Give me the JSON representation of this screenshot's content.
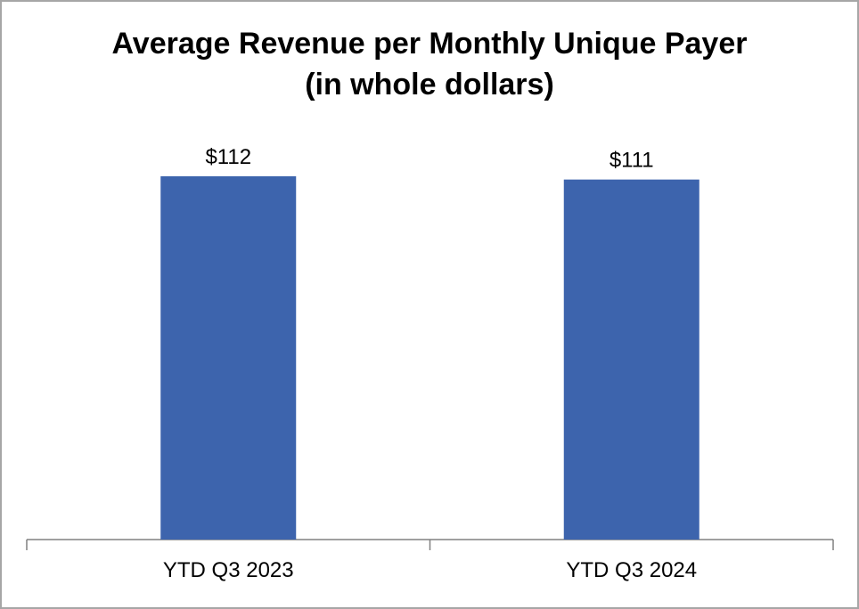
{
  "chart_data": {
    "type": "bar",
    "title": "Average Revenue per Monthly Unique Payer",
    "subtitle": "(in whole dollars)",
    "categories": [
      "YTD Q3 2023",
      "YTD Q3 2024"
    ],
    "values": [
      112,
      111
    ],
    "data_labels": [
      "$112",
      "$111"
    ],
    "xlabel": "",
    "ylabel": "",
    "ylim": [
      0,
      112
    ],
    "grid": false,
    "legend": "none",
    "bar_color": "#3D64AD",
    "axis_color": "#808080"
  }
}
